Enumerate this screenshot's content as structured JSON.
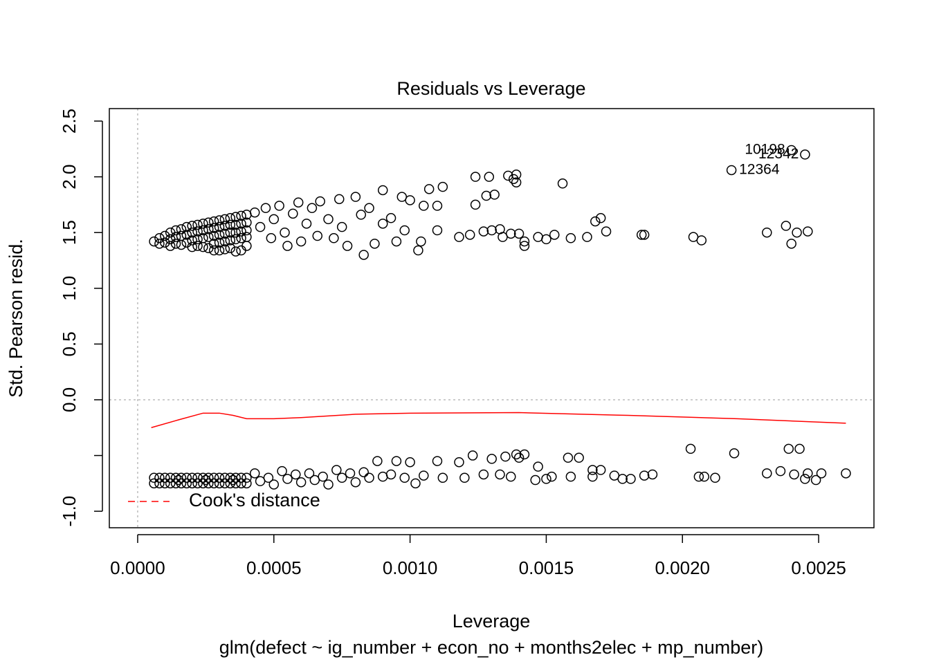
{
  "chart_data": {
    "type": "scatter",
    "title": "Residuals vs Leverage",
    "xlabel": "Leverage",
    "subtitle": "glm(defect ~ ig_number + econ_no + months2elec + mp_number)",
    "ylabel": "Std. Pearson resid.",
    "xlim": [
      -0.000104,
      0.002703
    ],
    "ylim": [
      -1.148,
      2.612
    ],
    "xticks": [
      {
        "value": 0,
        "label": "0.0000"
      },
      {
        "value": 0.0005,
        "label": "0.0005"
      },
      {
        "value": 0.001,
        "label": "0.0010"
      },
      {
        "value": 0.0015,
        "label": "0.0015"
      },
      {
        "value": 0.002,
        "label": "0.0020"
      },
      {
        "value": 0.0025,
        "label": "0.0025"
      }
    ],
    "yticks": [
      {
        "value": -1,
        "label": "-1.0"
      },
      {
        "value": -0.5,
        "label": null
      },
      {
        "value": 0,
        "label": "0.0"
      },
      0.5,
      {
        "value": 1,
        "label": "1.0"
      },
      1.5,
      {
        "value": 2,
        "label": "2.0"
      },
      2.5
    ],
    "color": "#000000",
    "x": [
      6e-05,
      8e-05,
      8e-05,
      0.0001,
      0.0001,
      0.00012,
      0.00012,
      0.00012,
      0.00014,
      0.00014,
      0.00014,
      0.00016,
      0.00016,
      0.00016,
      0.00018,
      0.00018,
      0.00018,
      0.0002,
      0.0002,
      0.0002,
      0.0002,
      0.00022,
      0.00022,
      0.00022,
      0.00022,
      0.00024,
      0.00024,
      0.00024,
      0.00024,
      0.00026,
      0.00026,
      0.00026,
      0.00026,
      0.00028,
      0.00028,
      0.00028,
      0.00028,
      0.00028,
      0.0003,
      0.0003,
      0.0003,
      0.0003,
      0.0003,
      0.00032,
      0.00032,
      0.00032,
      0.00032,
      0.00032,
      0.00034,
      0.00034,
      0.00034,
      0.00034,
      0.00034,
      0.00036,
      0.00036,
      0.00036,
      0.00036,
      0.00036,
      0.00038,
      0.00038,
      0.00038,
      0.00038,
      0.00038,
      0.0004,
      0.0004,
      0.0004,
      0.0004,
      0.0004,
      0.00043,
      0.00045,
      0.00047,
      0.00049,
      0.0005,
      0.00052,
      0.00054,
      0.00055,
      0.00057,
      0.00059,
      0.0006,
      0.00062,
      0.00064,
      0.00066,
      0.00067,
      0.0007,
      0.00072,
      0.00074,
      0.00075,
      0.00077,
      0.0008,
      0.00082,
      0.00083,
      0.00085,
      0.00087,
      0.0009,
      0.0009,
      0.00093,
      0.00095,
      0.00097,
      0.00098,
      0.001,
      0.00103,
      0.00104,
      0.00105,
      0.00107,
      0.0011,
      0.0011,
      0.00112,
      0.00118,
      0.00122,
      0.00124,
      0.00124,
      0.00127,
      0.00128,
      0.00129,
      0.0013,
      0.00131,
      0.00133,
      0.00134,
      0.00136,
      0.00137,
      0.00138,
      0.00139,
      0.00139,
      0.0014,
      0.00142,
      0.00142,
      0.00147,
      0.0015,
      0.00153,
      0.00156,
      0.00159,
      0.00165,
      0.00168,
      0.0017,
      0.00172,
      0.00185,
      0.00186,
      0.00204,
      0.00207,
      0.00218,
      0.00231,
      0.00238,
      0.0024,
      0.0024,
      0.00242,
      0.00245,
      0.00246,
      6e-05,
      6e-05,
      8e-05,
      8e-05,
      0.0001,
      0.0001,
      0.00012,
      0.00012,
      0.00014,
      0.00014,
      0.00016,
      0.00016,
      0.00018,
      0.00018,
      0.0002,
      0.0002,
      0.00022,
      0.00022,
      0.00024,
      0.00024,
      0.00026,
      0.00026,
      0.00028,
      0.00028,
      0.0003,
      0.0003,
      0.00032,
      0.00032,
      0.00034,
      0.00034,
      0.00036,
      0.00036,
      0.00038,
      0.00038,
      0.0004,
      0.0004,
      0.00015,
      0.00025,
      0.00035,
      0.00043,
      0.00045,
      0.00048,
      0.0005,
      0.00053,
      0.00055,
      0.00058,
      0.0006,
      0.00063,
      0.00065,
      0.00068,
      0.0007,
      0.00073,
      0.00075,
      0.00078,
      0.0008,
      0.00083,
      0.00085,
      0.00088,
      0.0009,
      0.00093,
      0.00095,
      0.00098,
      0.001,
      0.00102,
      0.00105,
      0.0011,
      0.00112,
      0.00118,
      0.0012,
      0.00123,
      0.00127,
      0.0013,
      0.00133,
      0.00135,
      0.00137,
      0.00139,
      0.0014,
      0.00142,
      0.00146,
      0.00147,
      0.0015,
      0.00152,
      0.00159,
      0.00158,
      0.00162,
      0.00167,
      0.00167,
      0.0017,
      0.00175,
      0.00178,
      0.00181,
      0.00186,
      0.00189,
      0.00203,
      0.00206,
      0.00208,
      0.00212,
      0.00219,
      0.00231,
      0.00236,
      0.00239,
      0.00241,
      0.00243,
      0.00245,
      0.00246,
      0.00249,
      0.00251,
      0.0026
    ],
    "values": [
      1.42,
      1.45,
      1.4,
      1.47,
      1.41,
      1.5,
      1.44,
      1.38,
      1.52,
      1.46,
      1.4,
      1.53,
      1.47,
      1.39,
      1.55,
      1.48,
      1.41,
      1.56,
      1.5,
      1.43,
      1.37,
      1.57,
      1.51,
      1.44,
      1.38,
      1.58,
      1.52,
      1.45,
      1.37,
      1.59,
      1.53,
      1.46,
      1.36,
      1.6,
      1.54,
      1.47,
      1.4,
      1.34,
      1.61,
      1.55,
      1.48,
      1.41,
      1.34,
      1.62,
      1.56,
      1.49,
      1.42,
      1.35,
      1.63,
      1.57,
      1.5,
      1.43,
      1.36,
      1.64,
      1.57,
      1.5,
      1.44,
      1.33,
      1.65,
      1.58,
      1.51,
      1.45,
      1.34,
      1.66,
      1.59,
      1.52,
      1.46,
      1.38,
      1.68,
      1.55,
      1.72,
      1.45,
      1.62,
      1.74,
      1.5,
      1.38,
      1.67,
      1.77,
      1.42,
      1.58,
      1.72,
      1.47,
      1.78,
      1.62,
      1.45,
      1.8,
      1.55,
      1.38,
      1.82,
      1.66,
      1.3,
      1.72,
      1.4,
      1.88,
      1.58,
      1.63,
      1.42,
      1.82,
      1.52,
      1.79,
      1.34,
      1.42,
      1.74,
      1.89,
      1.52,
      1.74,
      1.91,
      1.46,
      1.48,
      2.0,
      1.75,
      1.51,
      1.83,
      2.0,
      1.52,
      1.84,
      1.53,
      1.46,
      2.01,
      1.49,
      1.98,
      2.02,
      1.95,
      1.49,
      1.38,
      1.42,
      1.46,
      1.44,
      1.48,
      1.94,
      1.45,
      1.46,
      1.6,
      1.63,
      1.51,
      1.48,
      1.48,
      1.46,
      1.43,
      2.06,
      1.5,
      1.56,
      2.24,
      1.4,
      1.5,
      2.2,
      1.51,
      -0.7,
      -0.75,
      -0.7,
      -0.75,
      -0.7,
      -0.75,
      -0.7,
      -0.75,
      -0.7,
      -0.75,
      -0.7,
      -0.75,
      -0.7,
      -0.75,
      -0.7,
      -0.75,
      -0.7,
      -0.75,
      -0.7,
      -0.75,
      -0.7,
      -0.75,
      -0.7,
      -0.75,
      -0.7,
      -0.75,
      -0.7,
      -0.75,
      -0.7,
      -0.75,
      -0.7,
      -0.75,
      -0.7,
      -0.75,
      -0.7,
      -0.75,
      -0.72,
      -0.72,
      -0.72,
      -0.66,
      -0.73,
      -0.7,
      -0.76,
      -0.64,
      -0.71,
      -0.67,
      -0.74,
      -0.66,
      -0.72,
      -0.69,
      -0.76,
      -0.63,
      -0.7,
      -0.66,
      -0.74,
      -0.65,
      -0.7,
      -0.55,
      -0.69,
      -0.67,
      -0.55,
      -0.7,
      -0.56,
      -0.75,
      -0.68,
      -0.55,
      -0.7,
      -0.56,
      -0.7,
      -0.5,
      -0.67,
      -0.53,
      -0.67,
      -0.51,
      -0.69,
      -0.49,
      -0.52,
      -0.49,
      -0.72,
      -0.6,
      -0.71,
      -0.69,
      -0.69,
      -0.52,
      -0.52,
      -0.63,
      -0.69,
      -0.63,
      -0.68,
      -0.71,
      -0.71,
      -0.68,
      -0.67,
      -0.44,
      -0.69,
      -0.69,
      -0.7,
      -0.48,
      -0.66,
      -0.64,
      -0.44,
      -0.67,
      -0.44,
      -0.71,
      -0.66,
      -0.72,
      -0.66,
      -0.66
    ],
    "smooth": {
      "color": "#ff0000",
      "x": [
        5e-05,
        0.00015,
        0.00024,
        0.0003,
        0.00035,
        0.0004,
        0.0005,
        0.0006,
        0.0008,
        0.001,
        0.0014,
        0.0018,
        0.0022,
        0.0026
      ],
      "values": [
        -0.25,
        -0.18,
        -0.12,
        -0.12,
        -0.14,
        -0.17,
        -0.17,
        -0.16,
        -0.13,
        -0.12,
        -0.115,
        -0.14,
        -0.17,
        -0.21
      ]
    },
    "annotations": [
      {
        "text": "10198",
        "x": 0.0024,
        "y": 2.24,
        "pos": "left"
      },
      {
        "text": "12342",
        "x": 0.00245,
        "y": 2.2,
        "pos": "left"
      },
      {
        "text": "12364",
        "x": 0.00218,
        "y": 2.06,
        "pos": "right"
      }
    ],
    "legend": {
      "label": "Cook's distance",
      "color": "#ff0000",
      "corner": "bottomleft"
    }
  }
}
